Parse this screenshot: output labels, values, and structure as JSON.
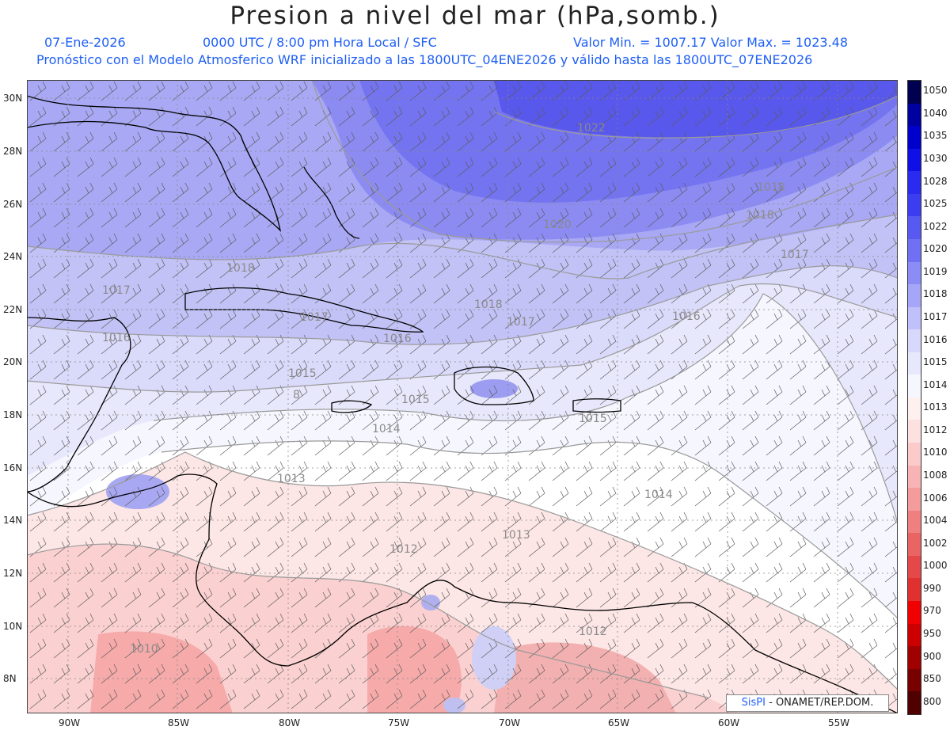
{
  "title": "Presion a nivel del mar (hPa,somb.)",
  "header": {
    "date": "07-Ene-2026",
    "time": "0000 UTC / 8:00 pm Hora Local / SFC",
    "min_max": "Valor Min. = 1007.17  Valor Max. = 1023.48",
    "model_line": "Pronóstico con el Modelo Atmosferico WRF inicializado a las 1800UTC_04ENE2026 y válido hasta las  1800UTC_07ENE2026"
  },
  "lon_labels": [
    "90W",
    "85W",
    "80W",
    "75W",
    "70W",
    "65W",
    "60W",
    "55W"
  ],
  "lat_labels": [
    "30N",
    "28N",
    "26N",
    "24N",
    "22N",
    "20N",
    "18N",
    "16N",
    "14N",
    "12N",
    "10N",
    "8N"
  ],
  "contour_labels": [
    "1022",
    "1020",
    "1018",
    "1018",
    "1018",
    "1017",
    "1017",
    "1017",
    "1018",
    "1017",
    "1016",
    "1016",
    "1016",
    "1015",
    "1015",
    "1015",
    "1014",
    "1014",
    "1013",
    "1013",
    "1012",
    "1012",
    "1010",
    "8"
  ],
  "colorbar": {
    "labels": [
      "1050",
      "1040",
      "1035",
      "1030",
      "1028",
      "1025",
      "1022",
      "1020",
      "1019",
      "1018",
      "1017",
      "1016",
      "1015",
      "1014",
      "1013",
      "1012",
      "1010",
      "1008",
      "1006",
      "1004",
      "1002",
      "1000",
      "990",
      "970",
      "950",
      "900",
      "850",
      "800"
    ],
    "colors": [
      "#000050",
      "#0000a0",
      "#0000cc",
      "#1010e6",
      "#2a2af0",
      "#3c3cf0",
      "#5858f2",
      "#7070f4",
      "#8c8cf6",
      "#a6a6f8",
      "#c0c0fa",
      "#d8d8fc",
      "#e8e8fd",
      "#f6f6ff",
      "#fff0f0",
      "#fde0e0",
      "#fbcaca",
      "#f8b4b4",
      "#f49c9c",
      "#f08080",
      "#ea6464",
      "#e44848",
      "#e03030",
      "#f00000",
      "#cc0000",
      "#a00000",
      "#780000",
      "#500000"
    ]
  },
  "credit": {
    "brand": "SisPI",
    "text": " - ONAMET/REP.DOM."
  }
}
